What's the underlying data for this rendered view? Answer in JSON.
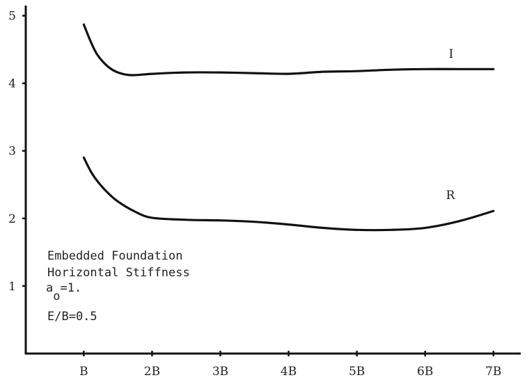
{
  "chart_data": {
    "type": "line",
    "title": "",
    "xlabel": "",
    "ylabel": "",
    "x_tick_labels": [
      "B",
      "2B",
      "3B",
      "4B",
      "5B",
      "6B",
      "7B"
    ],
    "x_tick_values": [
      1,
      2,
      3,
      4,
      5,
      6,
      7
    ],
    "y_tick_labels": [
      "1",
      "2",
      "3",
      "4",
      "5"
    ],
    "y_tick_values": [
      1,
      2,
      3,
      4,
      5
    ],
    "xlim": [
      0.15,
      7.4
    ],
    "ylim": [
      0,
      5.15
    ],
    "grid": false,
    "series": [
      {
        "name": "I",
        "x": [
          1.0,
          1.1,
          1.2,
          1.35,
          1.5,
          1.7,
          2.0,
          2.5,
          3.0,
          3.5,
          4.0,
          4.5,
          5.0,
          5.5,
          6.0,
          6.5,
          7.0
        ],
        "y": [
          4.87,
          4.62,
          4.42,
          4.25,
          4.16,
          4.12,
          4.14,
          4.16,
          4.16,
          4.15,
          4.14,
          4.17,
          4.18,
          4.2,
          4.21,
          4.21,
          4.21
        ]
      },
      {
        "name": "R",
        "x": [
          1.0,
          1.1,
          1.2,
          1.35,
          1.5,
          1.75,
          2.0,
          2.5,
          3.0,
          3.5,
          4.0,
          4.5,
          5.0,
          5.5,
          6.0,
          6.5,
          7.0
        ],
        "y": [
          2.9,
          2.7,
          2.55,
          2.38,
          2.25,
          2.1,
          2.01,
          1.98,
          1.97,
          1.95,
          1.91,
          1.86,
          1.83,
          1.83,
          1.86,
          1.96,
          2.11
        ]
      }
    ]
  },
  "annotation": {
    "line1": "Embedded Foundation",
    "line2": "Horizontal Stiffness",
    "line3_main": "a",
    "line3_sub": "o",
    "line3_rest": "=1.",
    "line4": "E/B=0.5"
  }
}
